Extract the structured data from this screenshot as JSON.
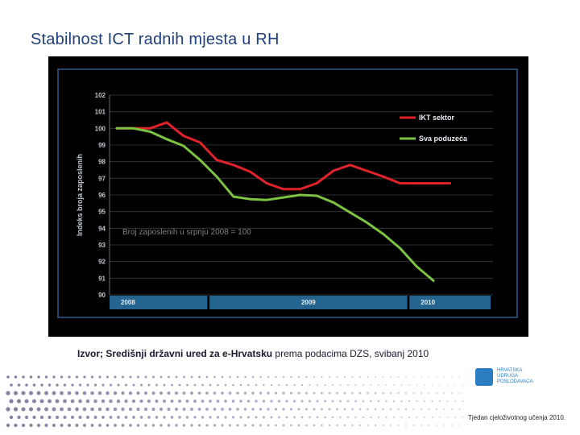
{
  "slide": {
    "title": "Stabilnost ICT radnih mjesta u RH",
    "source_bold": "Izvor; Središnji državni ured za e-Hrvatsku",
    "source_rest": " prema podacima DZS, svibanj 2010",
    "footer_note": "Tjedan cjeloživotnog učenja 2010.",
    "logo_text": "HRVATSKA\nUDRUGA\nPOSLODAVACA"
  },
  "chart_data": {
    "type": "line",
    "title": "",
    "xlabel": "",
    "ylabel": "Indeks broja zaposlenih",
    "ylim": [
      90,
      102
    ],
    "yticks": [
      90,
      91,
      92,
      93,
      94,
      95,
      96,
      97,
      98,
      99,
      100,
      101,
      102
    ],
    "annotation": "Broj zaposlenih u srpnju 2008 = 100",
    "x": [
      "2008-07",
      "2008-08",
      "2008-09",
      "2008-10",
      "2008-11",
      "2008-12",
      "2009-01",
      "2009-02",
      "2009-03",
      "2009-04",
      "2009-05",
      "2009-06",
      "2009-07",
      "2009-08",
      "2009-09",
      "2009-10",
      "2009-11",
      "2009-12",
      "2010-01",
      "2010-02",
      "2010-03",
      "2010-04",
      "2010-05"
    ],
    "year_bands": [
      {
        "label": "2008",
        "from": "2008-07",
        "to": "2008-12"
      },
      {
        "label": "2009",
        "from": "2009-01",
        "to": "2009-12"
      },
      {
        "label": "2010",
        "from": "2010-01",
        "to": "2010-05"
      }
    ],
    "series": [
      {
        "name": "IKT sektor",
        "color": "#e0232b",
        "values": [
          100,
          100,
          100,
          100.35,
          99.55,
          99.15,
          98.1,
          97.8,
          97.4,
          96.7,
          96.35,
          96.35,
          96.7,
          97.45,
          97.8,
          97.45,
          97.1,
          96.7,
          96.7,
          96.7,
          96.7,
          null,
          null
        ]
      },
      {
        "name": "Sva poduzeća",
        "color": "#7cc243",
        "values": [
          100,
          100,
          99.8,
          99.35,
          98.95,
          98.1,
          97.1,
          95.9,
          95.75,
          95.7,
          95.85,
          96.0,
          95.95,
          95.55,
          94.95,
          94.35,
          93.65,
          92.8,
          91.7,
          90.85,
          null,
          null,
          null
        ]
      }
    ],
    "legend_position": "top-right",
    "grid": true,
    "colors": {
      "background": "#000000",
      "frame": "#2c5c8a",
      "band": "#24648f",
      "axis_text": "#c0c6d0",
      "annotation_text": "#7a7f88"
    }
  }
}
